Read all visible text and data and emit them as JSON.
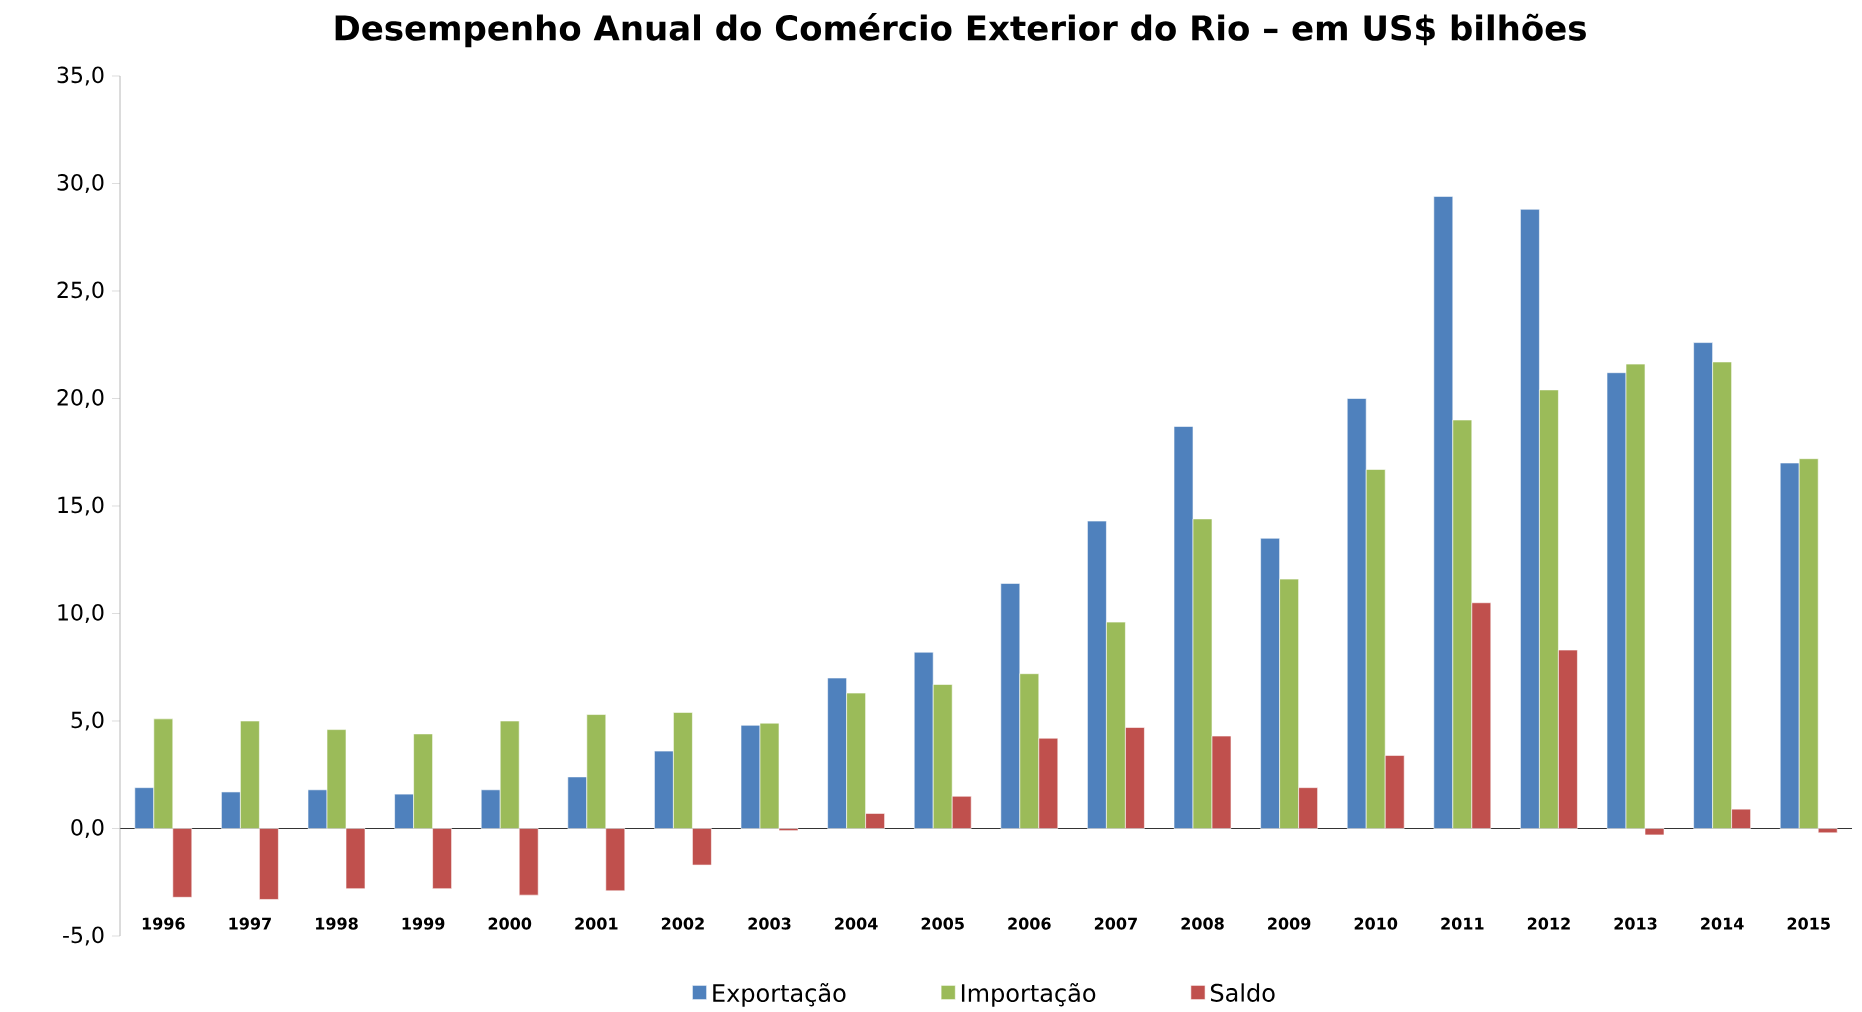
{
  "chart_data": {
    "type": "bar",
    "title": "Desempenho Anual do Comércio Exterior do Rio – em US$ bilhões",
    "categories": [
      "1996",
      "1997",
      "1998",
      "1999",
      "2000",
      "2001",
      "2002",
      "2003",
      "2004",
      "2005",
      "2006",
      "2007",
      "2008",
      "2009",
      "2010",
      "2011",
      "2012",
      "2013",
      "2014",
      "2015"
    ],
    "series": [
      {
        "name": "Exportação",
        "color": "#4f81bd",
        "values": [
          1.9,
          1.7,
          1.8,
          1.6,
          1.8,
          2.4,
          3.6,
          4.8,
          7.0,
          8.2,
          11.4,
          14.3,
          18.7,
          13.5,
          20.0,
          29.4,
          28.8,
          21.2,
          22.6,
          17.0
        ]
      },
      {
        "name": "Importação",
        "color": "#9bbb59",
        "values": [
          5.1,
          5.0,
          4.6,
          4.4,
          5.0,
          5.3,
          5.4,
          4.9,
          6.3,
          6.7,
          7.2,
          9.6,
          14.4,
          11.6,
          16.7,
          19.0,
          20.4,
          21.6,
          21.7,
          17.2
        ]
      },
      {
        "name": "Saldo",
        "color": "#c0504d",
        "values": [
          -3.2,
          -3.3,
          -2.8,
          -2.8,
          -3.1,
          -2.9,
          -1.7,
          -0.1,
          0.7,
          1.5,
          4.2,
          4.7,
          4.3,
          1.9,
          3.4,
          10.5,
          8.3,
          -0.3,
          0.9,
          -0.2
        ]
      }
    ],
    "ylim": [
      -5,
      35
    ],
    "yticks": [
      {
        "value": -5,
        "label": "-5,0"
      },
      {
        "value": 0,
        "label": "0,0"
      },
      {
        "value": 5,
        "label": "5,0"
      },
      {
        "value": 10,
        "label": "10,0"
      },
      {
        "value": 15,
        "label": "15,0"
      },
      {
        "value": 20,
        "label": "20,0"
      },
      {
        "value": 25,
        "label": "25,0"
      },
      {
        "value": 30,
        "label": "30,0"
      },
      {
        "value": 35,
        "label": "35,0"
      }
    ],
    "legend": "bottom"
  }
}
